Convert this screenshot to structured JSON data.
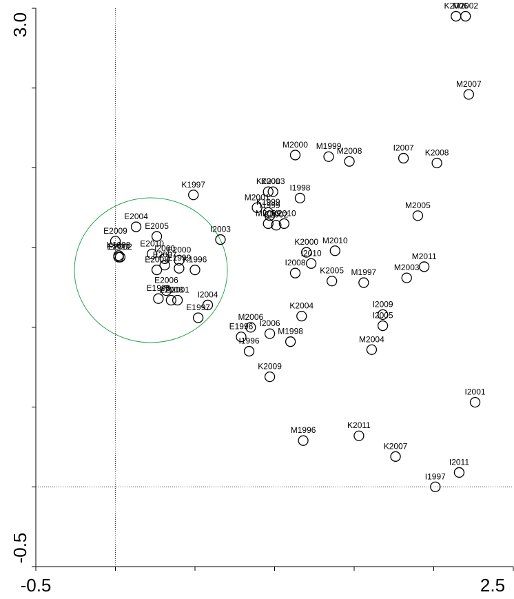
{
  "chart_data": {
    "type": "scatter",
    "xlim": [
      -0.5,
      2.5
    ],
    "ylim": [
      -0.5,
      3.0
    ],
    "xticks": [
      -0.5,
      0,
      0.5,
      1,
      1.5,
      2,
      2.5
    ],
    "yticks": [
      -0.5,
      0,
      0.5,
      1,
      1.5,
      2,
      2.5,
      3
    ],
    "xlabels": [
      -0.5,
      2.5
    ],
    "ylabels": [
      -0.5,
      {
        "value": 3,
        "label": "3.0"
      }
    ],
    "reference_lines": {
      "x": 0,
      "y": 0
    },
    "point_color": "#000000",
    "ellipse_color": "#2ca24f",
    "labels": [
      "K2006",
      "M2002",
      "M2007",
      "M2000",
      "M1999",
      "M2008",
      "I2007",
      "K2008",
      "K1997",
      "K2001",
      "K2003",
      "K1999",
      "M2001",
      "I1999",
      "I1998",
      "K2010",
      "K2002",
      "M2009",
      "I2003",
      "M2005",
      "K2000",
      "I2010",
      "M2010",
      "I2008",
      "K2005",
      "M1997",
      "M2011",
      "M2003",
      "E2004",
      "E2009",
      "E2011",
      "E2005",
      "E2010",
      "E2007",
      "K1998",
      "E2002",
      "E2000",
      "I2000",
      "E1999",
      "K1996",
      "E2008",
      "E2006",
      "E2003",
      "E2001",
      "E1998",
      "E1997",
      "I2004",
      "K2004",
      "M2006",
      "I2006",
      "E1996",
      "M1998",
      "I1996",
      "I2009",
      "I2005",
      "M2004",
      "K2009",
      "I2001",
      "M1996",
      "K2011",
      "K2007",
      "I2011",
      "I1997"
    ],
    "x": [
      2.14,
      2.2,
      2.22,
      1.13,
      1.34,
      1.47,
      1.81,
      2.02,
      0.49,
      0.96,
      0.99,
      0.96,
      0.89,
      0.97,
      1.16,
      1.06,
      1.01,
      0.96,
      0.66,
      1.9,
      1.2,
      1.23,
      1.38,
      1.13,
      1.36,
      1.56,
      1.94,
      1.83,
      0.13,
      0.0,
      0.02,
      0.26,
      0.23,
      0.31,
      0.02,
      0.03,
      0.4,
      0.31,
      0.4,
      0.5,
      0.26,
      0.32,
      0.35,
      0.39,
      0.27,
      0.52,
      0.58,
      1.17,
      0.85,
      0.97,
      0.79,
      1.1,
      0.84,
      1.68,
      1.68,
      1.61,
      0.97,
      2.26,
      1.18,
      1.53,
      1.76,
      2.16,
      2.01
    ],
    "y": [
      2.95,
      2.95,
      2.46,
      2.08,
      2.07,
      2.04,
      2.06,
      2.03,
      1.83,
      1.85,
      1.85,
      1.72,
      1.75,
      1.7,
      1.81,
      1.65,
      1.64,
      1.65,
      1.55,
      1.7,
      1.47,
      1.4,
      1.48,
      1.34,
      1.29,
      1.28,
      1.38,
      1.31,
      1.63,
      1.54,
      1.44,
      1.57,
      1.46,
      1.39,
      1.45,
      1.44,
      1.42,
      1.43,
      1.37,
      1.36,
      1.36,
      1.23,
      1.17,
      1.17,
      1.18,
      1.06,
      1.14,
      1.07,
      1.0,
      0.96,
      0.94,
      0.91,
      0.85,
      1.08,
      1.01,
      0.86,
      0.69,
      0.53,
      0.29,
      0.32,
      0.19,
      0.09,
      0.0
    ]
  }
}
